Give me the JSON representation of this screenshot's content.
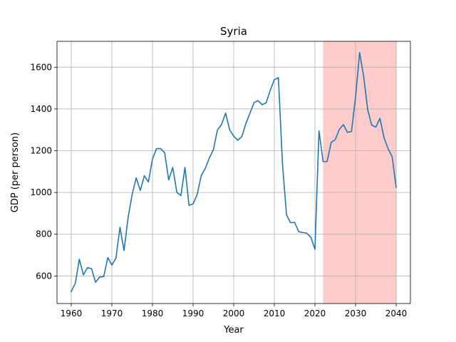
{
  "chart_data": {
    "type": "line",
    "title": "Syria",
    "xlabel": "Year",
    "ylabel": "GDP (per person)",
    "xlim": [
      1956.5,
      2043.5
    ],
    "ylim": [
      468,
      1724
    ],
    "xticks": [
      1960,
      1970,
      1980,
      1990,
      2000,
      2010,
      2020,
      2030,
      2040
    ],
    "yticks": [
      600,
      800,
      1000,
      1200,
      1400,
      1600
    ],
    "grid": true,
    "line_color": "#1f77b4",
    "highlight": {
      "x_start": 2022,
      "x_end": 2040,
      "color": "#ffcccc"
    },
    "series": [
      {
        "x": [
          1960,
          1961,
          1962,
          1963,
          1964,
          1965,
          1966,
          1967,
          1968,
          1969,
          1970,
          1971,
          1972,
          1973,
          1974,
          1975,
          1976,
          1977,
          1978,
          1979,
          1980,
          1981,
          1982,
          1983,
          1984,
          1985,
          1986,
          1987,
          1988,
          1989,
          1990,
          1991,
          1992,
          1993,
          1994,
          1995,
          1996,
          1997,
          1998,
          1999,
          2000,
          2001,
          2002,
          2003,
          2004,
          2005,
          2006,
          2007,
          2008,
          2009,
          2010,
          2011,
          2012,
          2013,
          2014,
          2015,
          2016,
          2017,
          2018,
          2019,
          2020,
          2021,
          2022,
          2023,
          2024,
          2025,
          2026,
          2027,
          2028,
          2029,
          2030,
          2031,
          2032,
          2033,
          2034,
          2035,
          2036,
          2037,
          2038,
          2039,
          2040
        ],
        "values": [
          525,
          565,
          680,
          605,
          640,
          635,
          570,
          595,
          597,
          688,
          652,
          685,
          833,
          722,
          880,
          990,
          1070,
          1010,
          1080,
          1050,
          1160,
          1210,
          1210,
          1190,
          1060,
          1120,
          1000,
          985,
          1120,
          938,
          945,
          990,
          1080,
          1115,
          1165,
          1205,
          1300,
          1325,
          1380,
          1300,
          1270,
          1250,
          1268,
          1330,
          1380,
          1430,
          1440,
          1420,
          1430,
          1490,
          1540,
          1550,
          1140,
          892,
          855,
          857,
          812,
          808,
          805,
          785,
          728,
          1295,
          1148,
          1148,
          1240,
          1253,
          1302,
          1325,
          1288,
          1292,
          1458,
          1670,
          1555,
          1395,
          1322,
          1313,
          1355,
          1263,
          1210,
          1172,
          1025
        ]
      }
    ]
  }
}
